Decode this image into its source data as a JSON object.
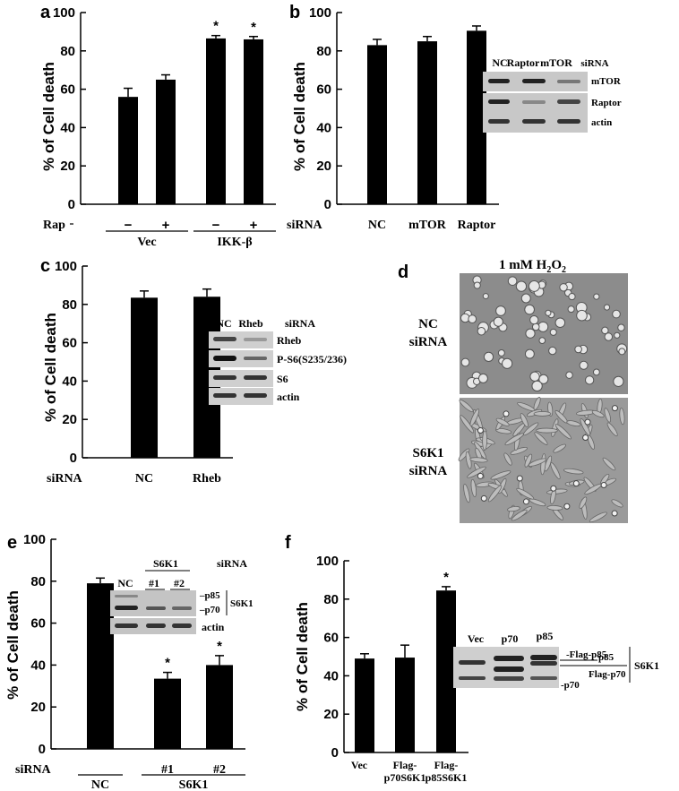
{
  "figure": {
    "d_title": "1 mM H",
    "d_title_sub": "2",
    "d_title_o": "O",
    "d_title_sub2": "2",
    "d_top_label": [
      "NC",
      "siRNA"
    ],
    "d_bottom_label": [
      "S6K1",
      "siRNA"
    ]
  },
  "chart_data": [
    {
      "panel": "a",
      "type": "bar",
      "ylabel": "% of Cell death",
      "ylim": [
        0,
        100
      ],
      "yticks": [
        "0",
        "20",
        "40",
        "60",
        "80",
        "100"
      ],
      "categories": [
        "−",
        "+",
        "−",
        "+"
      ],
      "row_label": "Rap",
      "groups": [
        {
          "label": "Vec",
          "span": [
            0,
            1
          ]
        },
        {
          "label": "IKK-β",
          "span": [
            2,
            3
          ]
        }
      ],
      "values": [
        56,
        65,
        86.5,
        86
      ],
      "errors": [
        4.5,
        2.5,
        1.5,
        1.5
      ],
      "significance": [
        "",
        "",
        "*",
        "*"
      ]
    },
    {
      "panel": "b",
      "type": "bar",
      "ylabel": "% of Cell death",
      "ylim": [
        0,
        100
      ],
      "yticks": [
        "0",
        "20",
        "40",
        "60",
        "80",
        "100"
      ],
      "row_label": "siRNA",
      "categories": [
        "NC",
        "mTOR",
        "Raptor"
      ],
      "values": [
        83,
        85,
        90.5
      ],
      "errors": [
        3,
        2.5,
        2.5
      ],
      "significance": [
        "",
        "",
        ""
      ],
      "blot": {
        "header": [
          "NC",
          "Raptor",
          "mTOR",
          "siRNA"
        ],
        "rows": [
          "mTOR",
          "Raptor",
          "actin"
        ]
      }
    },
    {
      "panel": "c",
      "type": "bar",
      "ylabel": "% of Cell death",
      "ylim": [
        0,
        100
      ],
      "yticks": [
        "0",
        "20",
        "40",
        "60",
        "80",
        "100"
      ],
      "row_label": "siRNA",
      "categories": [
        "NC",
        "Rheb"
      ],
      "values": [
        83.5,
        84
      ],
      "errors": [
        3.5,
        4
      ],
      "significance": [
        "",
        ""
      ],
      "blot": {
        "header": [
          "NC",
          "Rheb",
          "siRNA"
        ],
        "rows": [
          "Rheb",
          "P-S6(S235/236)",
          "S6",
          "actin"
        ]
      }
    },
    {
      "panel": "e",
      "type": "bar",
      "ylabel": "% of Cell death",
      "ylim": [
        0,
        100
      ],
      "yticks": [
        "0",
        "20",
        "40",
        "60",
        "80",
        "100"
      ],
      "row_label": "siRNA",
      "categories": [
        "",
        "#1",
        "#2"
      ],
      "groups": [
        {
          "label": "NC",
          "span": [
            0,
            0
          ]
        },
        {
          "label": "S6K1",
          "span": [
            1,
            2
          ]
        }
      ],
      "values": [
        79,
        33.5,
        40
      ],
      "errors": [
        2.5,
        3,
        4.5
      ],
      "significance": [
        "",
        "*",
        "*"
      ],
      "blot": {
        "header": [
          "NC",
          "S6K1",
          "#1",
          "#2",
          "siRNA"
        ],
        "rows": [
          "p85",
          "p70",
          "S6K1",
          "actin"
        ]
      }
    },
    {
      "panel": "f",
      "type": "bar",
      "ylabel": "% of Cell death",
      "ylim": [
        0,
        100
      ],
      "yticks": [
        "0",
        "20",
        "40",
        "60",
        "80",
        "100"
      ],
      "categories": [
        "Vec",
        "Flag-p70S6K1",
        "Flag-p85S6K1"
      ],
      "category_lines": [
        [
          "Vec"
        ],
        [
          "Flag-",
          "p70S6K1"
        ],
        [
          "Flag-",
          "p85S6K1"
        ]
      ],
      "values": [
        49,
        49.5,
        84.5
      ],
      "errors": [
        2.5,
        6.5,
        2
      ],
      "significance": [
        "",
        "",
        "*"
      ],
      "blot": {
        "header": [
          "Vec",
          "p70",
          "p85"
        ],
        "rows": [
          "Flag-p85",
          "p85",
          "Flag-p70",
          "p70",
          "S6K1"
        ]
      }
    }
  ]
}
